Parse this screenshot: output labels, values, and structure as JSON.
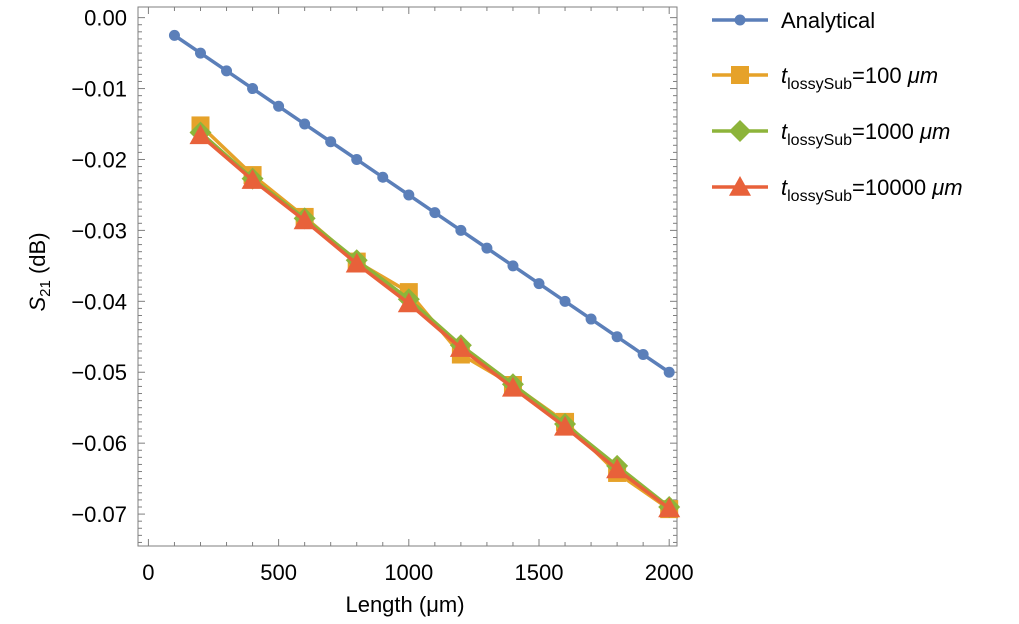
{
  "chart_data": {
    "type": "line",
    "xlabel": "Length (μm)",
    "ylabel_main": "S",
    "ylabel_sub": "21",
    "ylabel_unit": " (dB)",
    "xlim": [
      -40,
      2030
    ],
    "ylim": [
      -0.0745,
      0.0015
    ],
    "x_ticks": [
      0,
      500,
      1000,
      1500,
      2000
    ],
    "x_tick_labels": [
      "0",
      "500",
      "1000",
      "1500",
      "2000"
    ],
    "y_ticks": [
      0,
      -0.01,
      -0.02,
      -0.03,
      -0.04,
      -0.05,
      -0.06,
      -0.07
    ],
    "y_tick_labels": [
      "0.00",
      "−0.01",
      "−0.02",
      "−0.03",
      "−0.04",
      "−0.05",
      "−0.06",
      "−0.07"
    ],
    "grid": false,
    "legend_position": "right",
    "series": [
      {
        "name": "Analytical",
        "color": "#5b7fb9",
        "marker": "circle",
        "x": [
          100,
          200,
          300,
          400,
          500,
          600,
          700,
          800,
          900,
          1000,
          1100,
          1200,
          1300,
          1400,
          1500,
          1600,
          1700,
          1800,
          1900,
          2000
        ],
        "values": [
          -0.0025,
          -0.005,
          -0.0075,
          -0.01,
          -0.0125,
          -0.015,
          -0.0175,
          -0.02,
          -0.0225,
          -0.025,
          -0.0275,
          -0.03,
          -0.0325,
          -0.035,
          -0.0375,
          -0.04,
          -0.0425,
          -0.045,
          -0.0475,
          -0.05
        ]
      },
      {
        "name": "tlossySub=100 μm",
        "name_main": "t",
        "name_sub": "lossySub",
        "name_rest": "=100 ",
        "name_unit": "μm",
        "color": "#e6a229",
        "marker": "square",
        "x": [
          200,
          400,
          600,
          800,
          1000,
          1200,
          1400,
          1600,
          1800,
          2000
        ],
        "values": [
          -0.0152,
          -0.0222,
          -0.0281,
          -0.0344,
          -0.0387,
          -0.0475,
          -0.0518,
          -0.057,
          -0.0642,
          -0.0693
        ]
      },
      {
        "name": "tlossySub=1000 μm",
        "name_main": "t",
        "name_sub": "lossySub",
        "name_rest": "=1000 ",
        "name_unit": "μm",
        "color": "#8db43a",
        "marker": "diamond",
        "x": [
          200,
          400,
          600,
          800,
          1000,
          1200,
          1400,
          1600,
          1800,
          2000
        ],
        "values": [
          -0.0162,
          -0.0227,
          -0.0283,
          -0.0342,
          -0.0397,
          -0.0462,
          -0.0517,
          -0.0573,
          -0.0632,
          -0.069
        ]
      },
      {
        "name": "tlossySub=10000 μm",
        "name_main": "t",
        "name_sub": "lossySub",
        "name_rest": "=10000 ",
        "name_unit": "μm",
        "color": "#e8613a",
        "marker": "triangle",
        "x": [
          200,
          400,
          600,
          800,
          1000,
          1200,
          1400,
          1600,
          1800,
          2000
        ],
        "values": [
          -0.0166,
          -0.0229,
          -0.0286,
          -0.0347,
          -0.0403,
          -0.0466,
          -0.0522,
          -0.0577,
          -0.0637,
          -0.0692
        ]
      }
    ]
  }
}
